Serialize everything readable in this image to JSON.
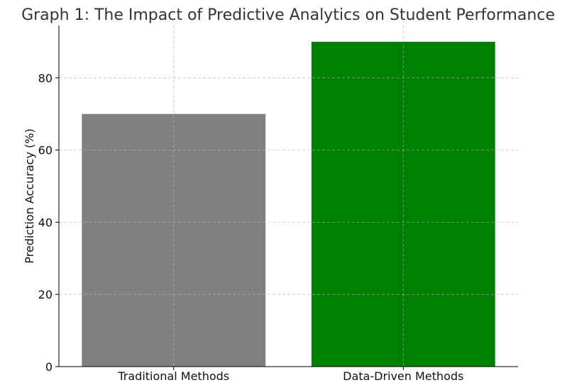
{
  "chart_data": {
    "type": "bar",
    "title": "Graph 1: The Impact of Predictive Analytics on Student Performance",
    "xlabel": "",
    "ylabel": "Prediction Accuracy (%)",
    "categories": [
      "Traditional Methods",
      "Data-Driven Methods"
    ],
    "values": [
      70,
      90
    ],
    "colors": [
      "#808080",
      "#008000"
    ],
    "ylim": [
      0,
      94.5
    ],
    "yticks": [
      0,
      20,
      40,
      60,
      80
    ],
    "grid": true,
    "legend": "none"
  }
}
